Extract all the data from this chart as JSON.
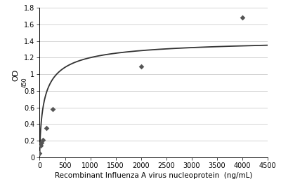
{
  "x_data": [
    0,
    15,
    31,
    63,
    125,
    250,
    2000,
    4000
  ],
  "y_data": [
    0.05,
    0.14,
    0.18,
    0.21,
    0.35,
    0.58,
    1.09,
    1.68
  ],
  "xlabel": "Recombinant Influenza A virus nucleoprotein  (ng/mL)",
  "xlim": [
    0,
    4500
  ],
  "ylim": [
    0,
    1.8
  ],
  "xticks": [
    0,
    500,
    1000,
    1500,
    2000,
    2500,
    3000,
    3500,
    4000,
    4500
  ],
  "yticks": [
    0,
    0.2,
    0.4,
    0.6,
    0.8,
    1.0,
    1.2,
    1.4,
    1.6,
    1.8
  ],
  "marker_color": "#555555",
  "line_color": "#333333",
  "grid_color": "#cccccc",
  "bg_color": "#ffffff",
  "xlabel_fontsize": 7.5,
  "ylabel_fontsize": 8,
  "tick_fontsize": 7,
  "curve_Vmax": 1.42,
  "curve_Km": 110,
  "curve_n": 0.72,
  "curve_baseline": 0.02
}
